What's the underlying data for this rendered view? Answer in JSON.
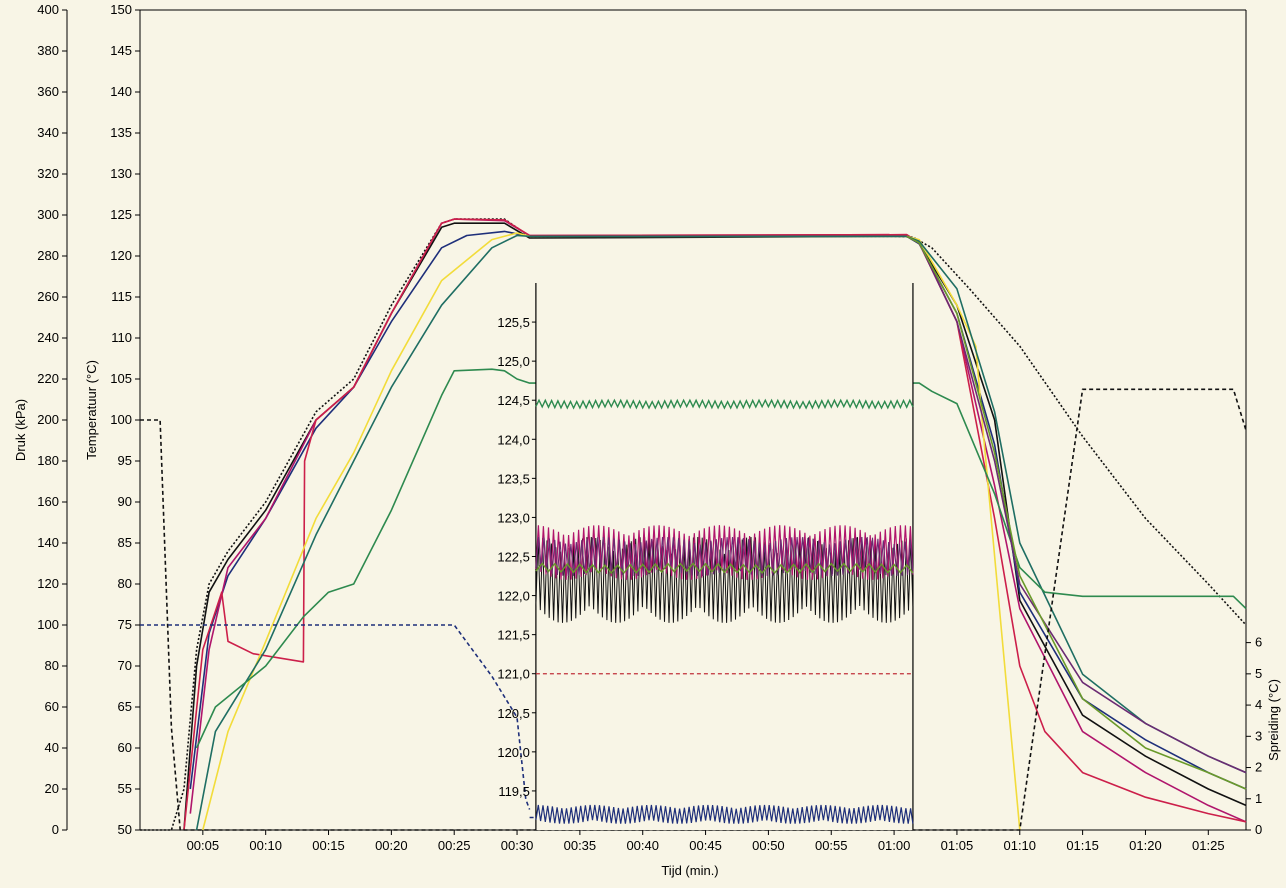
{
  "chart_data": {
    "type": "line",
    "title": "",
    "xlabel": "Tijd (min.)",
    "ylabel_pressure": "Druk (kPa)",
    "ylabel_temperature": "Temperatuur (°C)",
    "ylabel_spread": "Spreiding (°C)",
    "inset_ylabel": "",
    "grid": false,
    "colors": {
      "background": "#f8f5e6",
      "black": "#111111",
      "navy": "#1e2f7a",
      "teal": "#1f6e63",
      "yellow": "#f2dc3a",
      "magenta": "#b0156c",
      "purple": "#6b2b73",
      "crimson": "#cc1f4a",
      "red_dashed": "#c0303a",
      "green": "#2e8a4f",
      "olive": "#6a9a2a"
    },
    "xlim_minutes": [
      0,
      88
    ],
    "x_ticks": [
      "00:05",
      "00:10",
      "00:15",
      "00:20",
      "00:25",
      "00:30",
      "00:35",
      "00:40",
      "00:45",
      "00:50",
      "00:55",
      "01:00",
      "01:05",
      "01:10",
      "01:15",
      "01:20",
      "01:25"
    ],
    "x_tick_minutes": [
      5,
      10,
      15,
      20,
      25,
      30,
      35,
      40,
      45,
      50,
      55,
      60,
      65,
      70,
      75,
      80,
      85
    ],
    "pressure_axis": {
      "ylim": [
        0,
        400
      ],
      "ticks": [
        0,
        20,
        40,
        60,
        80,
        100,
        120,
        140,
        160,
        180,
        200,
        220,
        240,
        260,
        280,
        300,
        320,
        340,
        360,
        380,
        400
      ]
    },
    "temperature_axis": {
      "ylim": [
        50,
        150
      ],
      "ticks": [
        50,
        55,
        60,
        65,
        70,
        75,
        80,
        85,
        90,
        95,
        100,
        105,
        110,
        115,
        120,
        125,
        130,
        135,
        140,
        145,
        150
      ]
    },
    "spread_axis": {
      "ylim": [
        0,
        6.5
      ],
      "ticks": [
        0,
        1,
        2,
        3,
        4,
        5,
        6
      ]
    },
    "inset": {
      "x_range_minutes": [
        31.5,
        61.5
      ],
      "ylim": [
        119.0,
        126.0
      ],
      "ticks": [
        "125,5",
        "125,0",
        "124,5",
        "124,0",
        "123,5",
        "123,0",
        "122,5",
        "122,0",
        "121,5",
        "121,0",
        "120,5",
        "120,0",
        "119,5"
      ],
      "tick_values": [
        125.5,
        125.0,
        124.5,
        124.0,
        123.5,
        123.0,
        122.5,
        122.0,
        121.5,
        121.0,
        120.5,
        120.0,
        119.5
      ],
      "reference_line": 121.0
    },
    "series": [
      {
        "axis": "temperature",
        "color_key": "black",
        "style": "dotted",
        "x": [
          0,
          2.5,
          3.5,
          4.5,
          5.5,
          7,
          10,
          14,
          17,
          20,
          24,
          25,
          29,
          31,
          60,
          61.5,
          63,
          66,
          70,
          75,
          80,
          85,
          88
        ],
        "y": [
          50,
          50,
          55,
          72,
          80,
          84,
          90,
          101,
          105,
          114,
          124,
          124.5,
          124.5,
          122.4,
          122.4,
          122.3,
          121,
          116,
          109,
          98,
          88,
          80,
          75
        ]
      },
      {
        "axis": "temperature",
        "color_key": "black",
        "style": "solid",
        "x": [
          3.5,
          4.5,
          5.5,
          7,
          10,
          14,
          17,
          20,
          24,
          25,
          29,
          31,
          61,
          62,
          65,
          68,
          70,
          75,
          80,
          85,
          88
        ],
        "y": [
          50,
          70,
          79,
          83,
          89,
          100,
          104,
          113,
          123.5,
          124,
          124,
          122.2,
          122.4,
          121.5,
          114,
          100,
          78,
          64,
          59,
          55,
          53
        ]
      },
      {
        "axis": "temperature",
        "color_key": "navy",
        "style": "solid",
        "x": [
          4,
          5.5,
          7,
          10,
          14,
          17,
          20,
          24,
          26,
          29,
          31,
          61,
          62,
          65,
          68,
          70,
          75,
          80,
          85,
          88
        ],
        "y": [
          55,
          74,
          81,
          88,
          99,
          104,
          112,
          121,
          122.5,
          123,
          122.4,
          122.4,
          121.5,
          113,
          97,
          79,
          66,
          61,
          57,
          55
        ]
      },
      {
        "axis": "temperature",
        "color_key": "magenta",
        "style": "solid",
        "x": [
          4,
          5.5,
          7,
          10,
          14,
          17,
          20,
          24,
          25,
          29,
          31,
          61,
          62,
          65,
          68,
          70,
          75,
          80,
          85,
          88
        ],
        "y": [
          52,
          72,
          82,
          88,
          100,
          104,
          113,
          124,
          124.5,
          124.3,
          122.5,
          122.6,
          121.6,
          112,
          92,
          77,
          62,
          57,
          53,
          51
        ]
      },
      {
        "axis": "temperature",
        "color_key": "crimson",
        "style": "solid",
        "x": [
          3.5,
          5,
          6.5,
          7,
          9,
          13,
          13.1,
          14,
          17,
          20,
          24,
          25,
          29,
          31,
          61,
          62,
          65,
          68,
          70,
          72,
          75,
          80,
          85,
          88
        ],
        "y": [
          50,
          72,
          79,
          73,
          71.5,
          70.5,
          95,
          100,
          104,
          113,
          124,
          124.5,
          124.4,
          122.5,
          122.6,
          121.6,
          112,
          88,
          70,
          62,
          57,
          54,
          52,
          51
        ]
      },
      {
        "axis": "temperature",
        "color_key": "yellow",
        "style": "solid",
        "x": [
          5,
          7,
          10,
          14,
          17,
          20,
          24,
          28,
          30,
          31,
          61,
          62,
          65,
          66.5,
          67,
          70
        ],
        "y": [
          50,
          62,
          73,
          88,
          96,
          106,
          117,
          122,
          122.8,
          122.4,
          122.4,
          122,
          114,
          109,
          100,
          50
        ]
      },
      {
        "axis": "temperature",
        "color_key": "teal",
        "style": "solid",
        "x": [
          4.5,
          6,
          10,
          14,
          17,
          20,
          24,
          28,
          30,
          31,
          61,
          62,
          65,
          68,
          70,
          75,
          80,
          85,
          88
        ],
        "y": [
          50,
          62,
          72,
          86,
          95,
          104,
          114,
          121,
          122.5,
          122.4,
          122.4,
          121.8,
          116,
          101,
          85,
          69,
          63,
          59,
          57
        ]
      },
      {
        "axis": "temperature",
        "color_key": "green",
        "style": "solid",
        "x": [
          4.5,
          6,
          10,
          13,
          15,
          17,
          20,
          24,
          25,
          28,
          29,
          30,
          31,
          62,
          63,
          65,
          68,
          70,
          72,
          75,
          80,
          85,
          87,
          88
        ],
        "y": [
          60,
          65,
          70,
          76,
          79,
          80,
          89,
          103,
          106,
          106.2,
          106,
          105,
          104.5,
          104.5,
          103.5,
          102,
          91,
          82,
          79,
          78.5,
          78.5,
          78.5,
          78.5,
          77
        ]
      },
      {
        "axis": "temperature",
        "color_key": "purple",
        "style": "solid",
        "x": [
          61,
          62,
          65,
          68,
          70,
          75,
          80,
          85,
          88
        ],
        "y": [
          122.4,
          121.6,
          112,
          95,
          80,
          68,
          63,
          59,
          57
        ]
      },
      {
        "axis": "temperature",
        "color_key": "olive",
        "style": "solid",
        "x": [
          61,
          62,
          65,
          68,
          70,
          75,
          80,
          85,
          88
        ],
        "y": [
          122.4,
          121.6,
          113,
          96,
          81,
          66,
          60,
          57,
          55
        ]
      },
      {
        "axis": "pressure",
        "color_key": "black",
        "style": "dashed",
        "x": [
          0,
          0.5,
          1.6,
          2.5,
          3.2,
          4.5,
          25,
          31,
          62,
          64,
          66,
          70,
          75,
          78,
          80,
          85,
          87,
          88
        ],
        "y": [
          200,
          200,
          200,
          50,
          0,
          0,
          0,
          0,
          0,
          0,
          0,
          0,
          215,
          215,
          215,
          215,
          215,
          195
        ]
      },
      {
        "axis": "pressure",
        "color_key": "navy",
        "style": "dashed",
        "x": [
          0,
          3.2,
          4.5,
          25,
          28,
          30,
          30.7,
          31
        ],
        "y": [
          100,
          100,
          100,
          100,
          75,
          55,
          15,
          10
        ]
      },
      {
        "axis": "spread",
        "color_key": "navy",
        "style": "dashed",
        "x": [
          31,
          61
        ],
        "y": [
          0.4,
          0.4
        ]
      }
    ]
  }
}
